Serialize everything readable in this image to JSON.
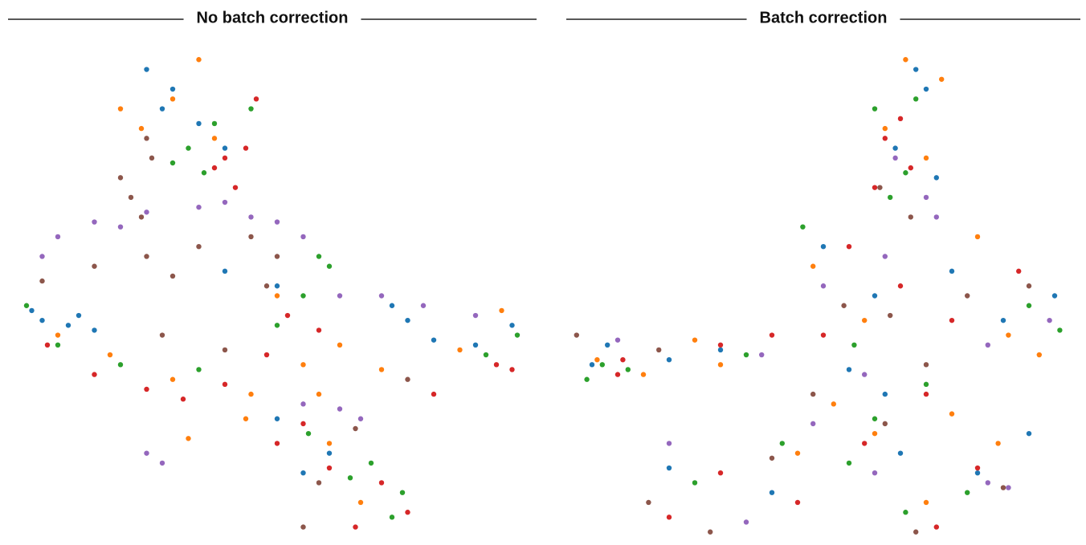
{
  "chart_data": [
    {
      "type": "scatter",
      "title": "No batch correction",
      "xlim": [
        0,
        100
      ],
      "ylim": [
        0,
        100
      ],
      "series": [
        {
          "color": "#1f77b4",
          "x": [
            25,
            30,
            28,
            35,
            40,
            3,
            5,
            10,
            15,
            12,
            40,
            50,
            75,
            80,
            88,
            95,
            72,
            55,
            60,
            50
          ],
          "values": [
            96,
            92,
            88,
            85,
            80,
            47,
            45,
            44,
            43,
            46,
            55,
            52,
            45,
            41,
            40,
            44,
            48,
            14,
            18,
            25
          ]
        },
        {
          "color": "#ff7f0e",
          "x": [
            30,
            35,
            24,
            38,
            20,
            8,
            18,
            30,
            45,
            55,
            50,
            62,
            85,
            93,
            70,
            33,
            44,
            60,
            66,
            58
          ],
          "values": [
            90,
            98,
            84,
            82,
            88,
            42,
            38,
            33,
            30,
            36,
            50,
            40,
            39,
            47,
            35,
            21,
            25,
            20,
            8,
            30
          ]
        },
        {
          "color": "#2ca02c",
          "x": [
            33,
            38,
            36,
            45,
            30,
            2,
            8,
            20,
            35,
            50,
            58,
            60,
            55,
            90,
            96,
            74,
            56,
            68,
            72,
            64
          ],
          "values": [
            80,
            85,
            75,
            88,
            77,
            48,
            40,
            36,
            35,
            44,
            58,
            56,
            50,
            38,
            42,
            10,
            22,
            16,
            5,
            13
          ]
        },
        {
          "color": "#d62728",
          "x": [
            40,
            44,
            42,
            46,
            38,
            6,
            15,
            25,
            32,
            40,
            48,
            52,
            58,
            92,
            95,
            80,
            50,
            60,
            70,
            75,
            55,
            65
          ],
          "values": [
            78,
            80,
            72,
            90,
            76,
            40,
            34,
            31,
            29,
            32,
            38,
            46,
            43,
            36,
            35,
            30,
            20,
            15,
            12,
            6,
            24,
            3
          ]
        },
        {
          "color": "#9467bd",
          "x": [
            8,
            15,
            25,
            35,
            45,
            55,
            20,
            40,
            50,
            5,
            62,
            70,
            78,
            88,
            55,
            62,
            66,
            25,
            28
          ],
          "values": [
            62,
            65,
            67,
            68,
            66,
            62,
            64,
            69,
            65,
            58,
            50,
            50,
            48,
            46,
            28,
            27,
            25,
            18,
            16
          ]
        },
        {
          "color": "#8c564b",
          "x": [
            20,
            22,
            24,
            26,
            25,
            15,
            25,
            35,
            45,
            50,
            30,
            48,
            28,
            40,
            5,
            65,
            55,
            58,
            75
          ],
          "values": [
            74,
            70,
            66,
            78,
            82,
            56,
            58,
            60,
            62,
            58,
            54,
            52,
            42,
            39,
            53,
            23,
            3,
            12,
            33
          ]
        }
      ]
    },
    {
      "type": "scatter",
      "title": "Batch correction",
      "xlim": [
        0,
        100
      ],
      "ylim": [
        0,
        100
      ],
      "series": [
        {
          "color": "#1f77b4",
          "x": [
            68,
            70,
            64,
            72,
            50,
            60,
            75,
            85,
            95,
            55,
            8,
            5,
            20,
            30,
            20,
            40,
            65,
            80,
            90,
            62
          ],
          "values": [
            96,
            92,
            80,
            74,
            60,
            50,
            55,
            45,
            50,
            35,
            40,
            36,
            37,
            39,
            15,
            10,
            18,
            14,
            22,
            30
          ]
        },
        {
          "color": "#ff7f0e",
          "x": [
            66,
            73,
            62,
            70,
            48,
            58,
            80,
            92,
            86,
            52,
            6,
            15,
            25,
            30,
            45,
            60,
            70,
            84,
            75
          ],
          "values": [
            98,
            94,
            84,
            78,
            56,
            45,
            62,
            38,
            42,
            28,
            37,
            34,
            41,
            36,
            18,
            22,
            8,
            20,
            26
          ]
        },
        {
          "color": "#2ca02c",
          "x": [
            60,
            68,
            66,
            63,
            46,
            56,
            70,
            90,
            96,
            60,
            7,
            4,
            12,
            35,
            25,
            42,
            55,
            66,
            78
          ],
          "values": [
            88,
            90,
            75,
            70,
            64,
            40,
            32,
            48,
            43,
            25,
            36,
            33,
            35,
            38,
            12,
            20,
            16,
            6,
            10
          ]
        },
        {
          "color": "#d62728",
          "x": [
            65,
            62,
            67,
            60,
            55,
            65,
            75,
            88,
            50,
            70,
            10,
            11,
            30,
            40,
            20,
            30,
            45,
            58,
            72,
            80
          ],
          "values": [
            86,
            82,
            76,
            72,
            60,
            52,
            45,
            55,
            42,
            30,
            34,
            37,
            40,
            42,
            5,
            14,
            8,
            20,
            3,
            15
          ]
        },
        {
          "color": "#9467bd",
          "x": [
            64,
            70,
            50,
            62,
            72,
            82,
            94,
            58,
            10,
            38,
            20,
            35,
            60,
            82,
            86,
            48
          ],
          "values": [
            78,
            70,
            52,
            58,
            66,
            40,
            45,
            34,
            41,
            38,
            20,
            4,
            14,
            12,
            11,
            24
          ]
        },
        {
          "color": "#8c564b",
          "x": [
            61,
            67,
            54,
            63,
            78,
            90,
            70,
            48,
            2,
            18,
            16,
            28,
            40,
            62,
            68,
            85
          ],
          "values": [
            72,
            66,
            48,
            46,
            50,
            52,
            36,
            30,
            42,
            39,
            8,
            2,
            17,
            24,
            2,
            11
          ]
        }
      ]
    }
  ]
}
